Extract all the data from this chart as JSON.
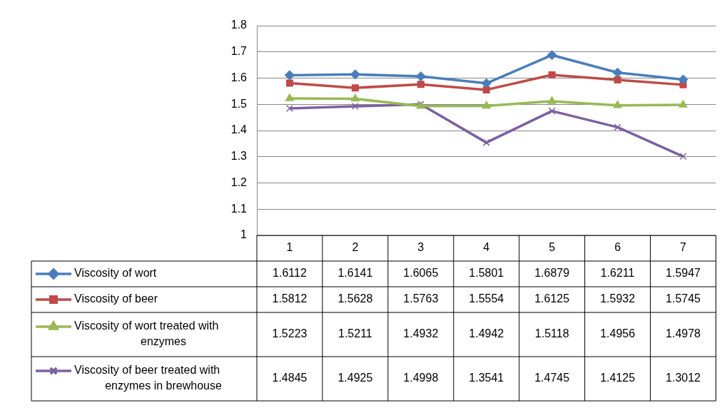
{
  "chart_data": {
    "type": "line",
    "categories": [
      "1",
      "2",
      "3",
      "4",
      "5",
      "6",
      "7"
    ],
    "series": [
      {
        "name": "Viscosity of wort",
        "color": "#4a7ebb",
        "marker": "diamond",
        "values": [
          1.6112,
          1.6141,
          1.6065,
          1.5801,
          1.6879,
          1.6211,
          1.5947
        ]
      },
      {
        "name": "Viscosity of beer",
        "color": "#be4b48",
        "marker": "square",
        "values": [
          1.5812,
          1.5628,
          1.5763,
          1.5554,
          1.6125,
          1.5932,
          1.5745
        ]
      },
      {
        "name": "Viscosity of wort treated with enzymes",
        "color": "#98b954",
        "marker": "triangle",
        "values": [
          1.5223,
          1.5211,
          1.4932,
          1.4942,
          1.5118,
          1.4956,
          1.4978
        ]
      },
      {
        "name": "Viscosity of beer treated with enzymes in brewhouse",
        "color": "#7d60a0",
        "marker": "cross",
        "values": [
          1.4845,
          1.4925,
          1.4998,
          1.3541,
          1.4745,
          1.4125,
          1.3012
        ]
      }
    ],
    "ylim": [
      1,
      1.8
    ],
    "yticks": [
      1,
      1.1,
      1.2,
      1.3,
      1.4,
      1.5,
      1.6,
      1.7,
      1.8
    ],
    "grid": "y",
    "legend": "bottom",
    "data_labels": true,
    "line_style": "solid"
  }
}
